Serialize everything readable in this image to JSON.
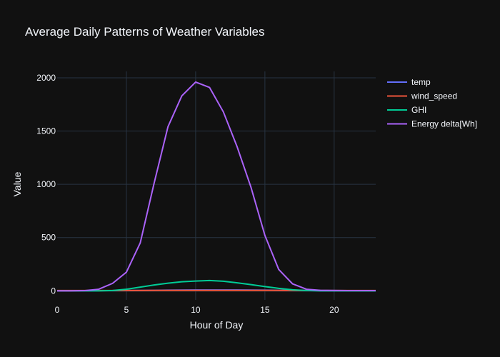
{
  "chart_data": {
    "type": "line",
    "title": "Average Daily Patterns of Weather Variables",
    "xlabel": "Hour of Day",
    "ylabel": "Value",
    "x": [
      0,
      1,
      2,
      3,
      4,
      5,
      6,
      7,
      8,
      9,
      10,
      11,
      12,
      13,
      14,
      15,
      16,
      17,
      18,
      19,
      20,
      21,
      22,
      23
    ],
    "xlim": [
      0,
      23
    ],
    "ylim": [
      -85,
      2060
    ],
    "xticks": [
      0,
      5,
      10,
      15,
      20
    ],
    "yticks": [
      0,
      500,
      1000,
      1500,
      2000
    ],
    "grid": true,
    "legend_position": "right",
    "background": "#111111",
    "series": [
      {
        "name": "temp",
        "color": "#636efa",
        "values": [
          2,
          2,
          2,
          2,
          2,
          3,
          4,
          5,
          6,
          7,
          8,
          8,
          8,
          8,
          7,
          6,
          5,
          4,
          3,
          3,
          3,
          2,
          2,
          2
        ]
      },
      {
        "name": "wind_speed",
        "color": "#ef553b",
        "values": [
          3,
          3,
          3,
          3,
          3,
          3,
          3,
          4,
          4,
          4,
          4,
          4,
          4,
          4,
          4,
          4,
          4,
          3,
          3,
          3,
          3,
          3,
          3,
          3
        ]
      },
      {
        "name": "GHI",
        "color": "#00cc96",
        "values": [
          0,
          0,
          0,
          0,
          3,
          15,
          35,
          55,
          72,
          85,
          92,
          97,
          90,
          75,
          58,
          40,
          23,
          10,
          3,
          0,
          0,
          0,
          0,
          0
        ]
      },
      {
        "name": "Energy delta[Wh]",
        "color": "#ab63fa",
        "values": [
          0,
          0,
          2,
          15,
          70,
          175,
          450,
          1010,
          1540,
          1830,
          1960,
          1910,
          1680,
          1350,
          970,
          520,
          200,
          65,
          15,
          5,
          3,
          2,
          2,
          2
        ]
      }
    ]
  }
}
